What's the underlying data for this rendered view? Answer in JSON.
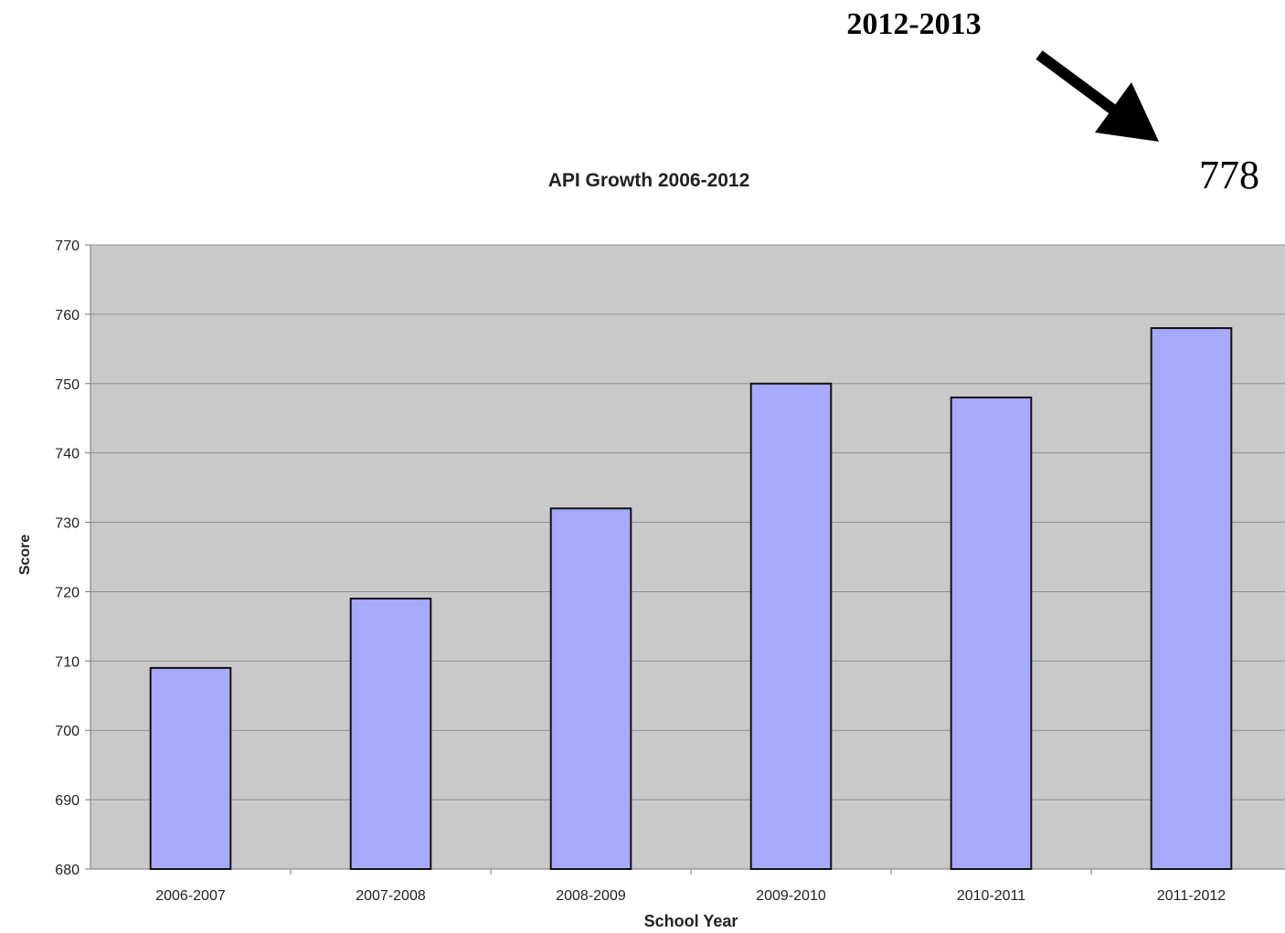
{
  "annotation": {
    "year": "2012-2013",
    "value": "778"
  },
  "colors": {
    "plot_background": "#c9c9c9",
    "bar_fill": "#a7a9fd",
    "bar_stroke": "#111111",
    "gridline": "#8f8f8f"
  },
  "chart_data": {
    "type": "bar",
    "title": "API Growth 2006-2012",
    "xlabel": "School Year",
    "ylabel": "Score",
    "categories": [
      "2006-2007",
      "2007-2008",
      "2008-2009",
      "2009-2010",
      "2010-2011",
      "2011-2012"
    ],
    "values": [
      709,
      719,
      732,
      750,
      748,
      758
    ],
    "ylim": [
      680,
      770
    ],
    "yticks": [
      "680",
      "690",
      "700",
      "710",
      "720",
      "730",
      "740",
      "750",
      "760",
      "770"
    ],
    "grid": true,
    "legend": "none"
  }
}
